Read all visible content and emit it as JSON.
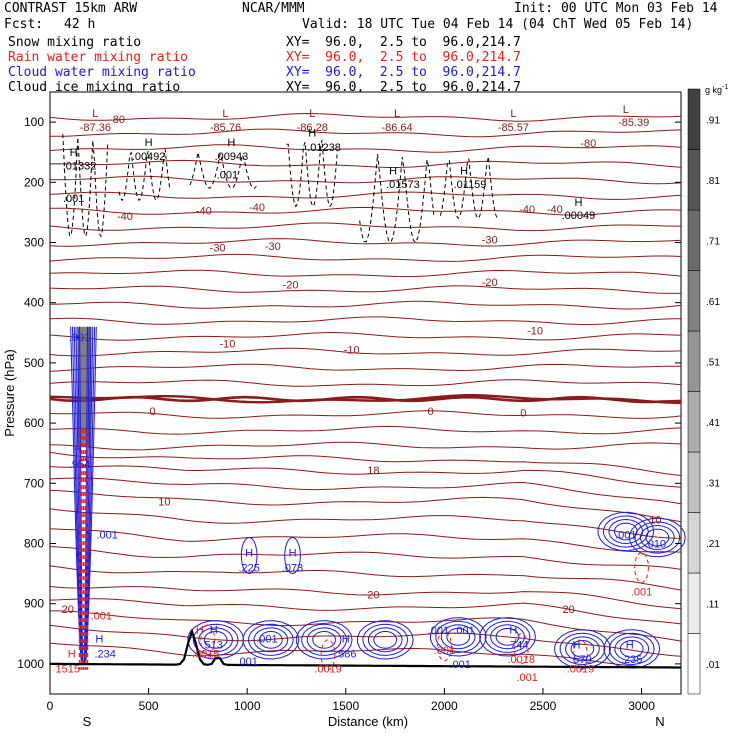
{
  "header": {
    "model": "CONTRAST 15km ARW",
    "center": "NCAR/MMM",
    "init": "Init: 00 UTC Mon 03 Feb 14",
    "fcst_label": "Fcst:",
    "fcst_value": "42 h",
    "valid": "Valid: 18 UTC Tue 04 Feb 14 (04 ChT Wed 05 Feb 14)"
  },
  "fields": [
    {
      "name": "Snow mixing ratio",
      "xy": "XY=  96.0,  2.5 to  96.0,214.7",
      "color": "#000000"
    },
    {
      "name": "Rain water mixing ratio",
      "xy": "XY=  96.0,  2.5 to  96.0,214.7",
      "color": "#e8201a"
    },
    {
      "name": "Cloud water mixing ratio",
      "xy": "XY=  96.0,  2.5 to  96.0,214.7",
      "color": "#1a1ae8"
    },
    {
      "name": "Cloud ice mixing ratio",
      "xy": "XY=  96.0,  2.5 to  96.0,214.7",
      "color": "#000000"
    }
  ],
  "chart_data": {
    "type": "contour",
    "xlabel": "Distance (km)",
    "ylabel": "Pressure (hPa)",
    "xlim": [
      0,
      3200
    ],
    "ylim": [
      1050,
      50
    ],
    "x_ticks": [
      0,
      500,
      1000,
      1500,
      2000,
      2500,
      3000
    ],
    "y_ticks": [
      100,
      200,
      300,
      400,
      500,
      600,
      700,
      800,
      900,
      1000
    ],
    "endpoint_labels": [
      "S",
      "N"
    ],
    "colorbar": {
      "unit": "g kg",
      "unit_exp": "-1",
      "labels": [
        ".01",
        ".11",
        ".21",
        ".31",
        ".41",
        ".51",
        ".61",
        ".71",
        ".81",
        ".91"
      ]
    },
    "temperature_contour_color": "#8b1a1a",
    "temperature_contours": [
      {
        "value": -80,
        "labels": [
          {
            "x": 340,
            "p": 95,
            "t": "-80"
          },
          {
            "x": 2730,
            "p": 135,
            "t": "-80"
          }
        ]
      },
      {
        "value": -40,
        "labels": [
          {
            "x": 380,
            "p": 256,
            "t": "-40"
          },
          {
            "x": 780,
            "p": 247,
            "t": "-40"
          },
          {
            "x": 1050,
            "p": 241,
            "t": "-40"
          },
          {
            "x": 2420,
            "p": 244,
            "t": "-40"
          },
          {
            "x": 2560,
            "p": 244,
            "t": "-40"
          }
        ]
      },
      {
        "value": -30,
        "labels": [
          {
            "x": 850,
            "p": 308,
            "t": "-30"
          },
          {
            "x": 1130,
            "p": 306,
            "t": "-30"
          },
          {
            "x": 2230,
            "p": 295,
            "t": "-30"
          }
        ]
      },
      {
        "value": -20,
        "labels": [
          {
            "x": 1220,
            "p": 370,
            "t": "-20"
          },
          {
            "x": 2230,
            "p": 366,
            "t": "-20"
          }
        ]
      },
      {
        "value": -10,
        "labels": [
          {
            "x": 900,
            "p": 468,
            "t": "-10"
          },
          {
            "x": 1530,
            "p": 478,
            "t": "-10"
          },
          {
            "x": 2460,
            "p": 446,
            "t": "-10"
          }
        ]
      },
      {
        "value": 0,
        "labels": [
          {
            "x": 520,
            "p": 580,
            "t": "0"
          },
          {
            "x": 1930,
            "p": 580,
            "t": "0"
          },
          {
            "x": 2400,
            "p": 582,
            "t": "0"
          }
        ]
      },
      {
        "value": 10,
        "labels": [
          {
            "x": 580,
            "p": 730,
            "t": "10"
          },
          {
            "x": 3070,
            "p": 760,
            "t": "10"
          }
        ]
      },
      {
        "value": 18,
        "labels": [
          {
            "x": 1640,
            "p": 678,
            "t": "18"
          }
        ]
      },
      {
        "value": 20,
        "labels": [
          {
            "x": 90,
            "p": 909,
            "t": "20"
          },
          {
            "x": 1640,
            "p": 885,
            "t": "20"
          },
          {
            "x": 2630,
            "p": 909,
            "t": "20"
          }
        ]
      }
    ],
    "min_labels": [
      {
        "x": 230,
        "p": 85,
        "t": "L"
      },
      {
        "x": 230,
        "p": 108,
        "t": "-87.36"
      },
      {
        "x": 890,
        "p": 85,
        "t": "L"
      },
      {
        "x": 890,
        "p": 108,
        "t": "-85.76"
      },
      {
        "x": 1330,
        "p": 85,
        "t": "L"
      },
      {
        "x": 1330,
        "p": 108,
        "t": "-86.28"
      },
      {
        "x": 1760,
        "p": 85,
        "t": "L"
      },
      {
        "x": 1760,
        "p": 108,
        "t": "-86.64"
      },
      {
        "x": 2350,
        "p": 85,
        "t": "L"
      },
      {
        "x": 2350,
        "p": 108,
        "t": "-85.57"
      },
      {
        "x": 2920,
        "p": 78,
        "t": "L"
      },
      {
        "x": 2960,
        "p": 100,
        "t": "-85.39"
      }
    ],
    "ice_maxima": [
      {
        "x": 120,
        "p": 150,
        "t": "H"
      },
      {
        "x": 150,
        "p": 172,
        "t": ".01332"
      },
      {
        "x": 500,
        "p": 133,
        "t": "H"
      },
      {
        "x": 500,
        "p": 156,
        "t": ".00492"
      },
      {
        "x": 920,
        "p": 133,
        "t": "H"
      },
      {
        "x": 920,
        "p": 156,
        "t": ".00943"
      },
      {
        "x": 1330,
        "p": 117,
        "t": "H"
      },
      {
        "x": 1390,
        "p": 141,
        "t": ".01238"
      },
      {
        "x": 1740,
        "p": 180,
        "t": "H"
      },
      {
        "x": 1790,
        "p": 203,
        "t": ".01573"
      },
      {
        "x": 2100,
        "p": 180,
        "t": "H"
      },
      {
        "x": 2130,
        "p": 203,
        "t": ".01159"
      },
      {
        "x": 2680,
        "p": 233,
        "t": "H"
      },
      {
        "x": 2680,
        "p": 254,
        "t": ".00049"
      },
      {
        "x": 900,
        "p": 187,
        "t": ".001"
      },
      {
        "x": 120,
        "p": 226,
        "t": ".001"
      }
    ],
    "cloud_water_maxima": [
      {
        "x": 150,
        "p": 457,
        "t": ".001"
      },
      {
        "x": 140,
        "p": 643,
        "t": "H"
      },
      {
        "x": 150,
        "p": 668,
        "t": ".954"
      },
      {
        "x": 290,
        "p": 785,
        "t": ".001"
      },
      {
        "x": 1010,
        "p": 815,
        "t": "H"
      },
      {
        "x": 1010,
        "p": 840,
        "t": ".225"
      },
      {
        "x": 1230,
        "p": 815,
        "t": "H"
      },
      {
        "x": 1230,
        "p": 840,
        "t": ".073"
      },
      {
        "x": 830,
        "p": 943,
        "t": "H"
      },
      {
        "x": 830,
        "p": 968,
        "t": "513"
      },
      {
        "x": 1100,
        "p": 958,
        "t": ".001"
      },
      {
        "x": 1000,
        "p": 995,
        "t": ".001"
      },
      {
        "x": 1500,
        "p": 958,
        "t": "H"
      },
      {
        "x": 1500,
        "p": 983,
        "t": ".586"
      },
      {
        "x": 1970,
        "p": 944,
        "t": ".001"
      },
      {
        "x": 2100,
        "p": 944,
        "t": ".001"
      },
      {
        "x": 2350,
        "p": 943,
        "t": "H"
      },
      {
        "x": 2380,
        "p": 968,
        "t": "744"
      },
      {
        "x": 2080,
        "p": 1000,
        "t": ".001"
      },
      {
        "x": 2670,
        "p": 968,
        "t": "H"
      },
      {
        "x": 2700,
        "p": 992,
        "t": "570"
      },
      {
        "x": 2940,
        "p": 968,
        "t": "H"
      },
      {
        "x": 2950,
        "p": 992,
        "t": ".235"
      },
      {
        "x": 250,
        "p": 958,
        "t": "H"
      },
      {
        "x": 280,
        "p": 983,
        "t": ".234"
      },
      {
        "x": 2920,
        "p": 785,
        "t": ".001"
      },
      {
        "x": 3070,
        "p": 800,
        "t": ".010"
      }
    ],
    "rain_maxima": [
      {
        "x": 260,
        "p": 920,
        "t": ".001"
      },
      {
        "x": 110,
        "p": 983,
        "t": "H"
      },
      {
        "x": 90,
        "p": 1008,
        "t": "1515"
      },
      {
        "x": 760,
        "p": 943,
        "t": "H"
      },
      {
        "x": 790,
        "p": 983,
        "t": ".0015"
      },
      {
        "x": 1410,
        "p": 1008,
        "t": ".0019"
      },
      {
        "x": 2000,
        "p": 977,
        "t": ".001"
      },
      {
        "x": 2390,
        "p": 992,
        "t": ".0018"
      },
      {
        "x": 2420,
        "p": 1022,
        "t": ".001"
      },
      {
        "x": 2690,
        "p": 1008,
        "t": ".0019"
      },
      {
        "x": 3000,
        "p": 880,
        "t": ".001"
      }
    ],
    "terrain": {
      "color": "#000000"
    }
  }
}
